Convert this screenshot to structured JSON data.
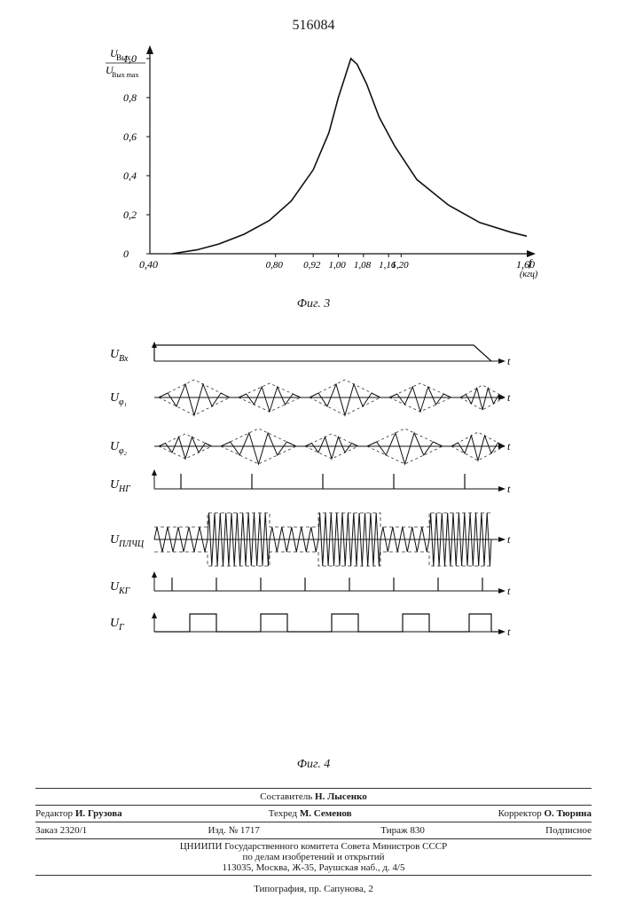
{
  "patent_number": "516084",
  "fig3": {
    "caption": "Фиг. 3",
    "ylabel_top": "U",
    "ylabel_top_sub": "Вых",
    "ylabel_bot": "U",
    "ylabel_bot_sub": "Вых max",
    "yticks": [
      "1,0",
      "0,8",
      "0,6",
      "0,4",
      "0,2",
      "0"
    ],
    "xticks_left": "0,40",
    "xticks_mid": [
      "0,80",
      "0,92",
      "1,00",
      "1,08",
      "1,16",
      "1,20"
    ],
    "xticks_right": "1,60",
    "xunit_top": "f",
    "xunit_bot": "(кгц)",
    "xlim": [
      0.4,
      1.6
    ],
    "ylim": [
      0,
      1.0
    ],
    "peak_x": 1.04,
    "curve": [
      [
        0.47,
        0.0
      ],
      [
        0.55,
        0.02
      ],
      [
        0.62,
        0.05
      ],
      [
        0.7,
        0.1
      ],
      [
        0.78,
        0.17
      ],
      [
        0.85,
        0.27
      ],
      [
        0.92,
        0.43
      ],
      [
        0.97,
        0.62
      ],
      [
        1.0,
        0.8
      ],
      [
        1.03,
        0.95
      ],
      [
        1.04,
        1.0
      ],
      [
        1.06,
        0.97
      ],
      [
        1.09,
        0.87
      ],
      [
        1.13,
        0.7
      ],
      [
        1.18,
        0.55
      ],
      [
        1.25,
        0.38
      ],
      [
        1.35,
        0.25
      ],
      [
        1.45,
        0.16
      ],
      [
        1.55,
        0.11
      ],
      [
        1.6,
        0.09
      ]
    ],
    "line_color": "#111111",
    "line_width": 1.6,
    "tick_fontsize": 12
  },
  "fig4": {
    "caption": "Фиг. 4",
    "signals": [
      {
        "label": "U",
        "sub": "Вх",
        "type": "ramp"
      },
      {
        "label": "U",
        "sub": "φ₁",
        "type": "beat"
      },
      {
        "label": "U",
        "sub": "φ₂",
        "type": "beat2"
      },
      {
        "label": "U",
        "sub": "НГ",
        "type": "impulse"
      },
      {
        "label": "U",
        "sub": "ПЛЧЦ",
        "type": "fm"
      },
      {
        "label": "U",
        "sub": "КГ",
        "type": "impulse2"
      },
      {
        "label": "U",
        "sub": "Г",
        "type": "pulse"
      }
    ],
    "t_label": "t",
    "line_color": "#111111",
    "dash_color": "#333333"
  },
  "credits": {
    "compiler_label": "Составитель",
    "compiler": "Н. Лысенко",
    "editor_label": "Редактор",
    "editor": "И. Грузова",
    "techred_label": "Техред",
    "techred": "М. Семенов",
    "corrector_label": "Корректор",
    "corrector": "О. Тюрина",
    "order_label": "Заказ",
    "order": "2320/1",
    "izd_label": "Изд. №",
    "izd": "1717",
    "tirage_label": "Тираж",
    "tirage": "830",
    "subscript": "Подписное",
    "org1": "ЦНИИПИ Государственного комитета Совета Министров СССР",
    "org2": "по делам изобретений и открытий",
    "addr": "113035, Москва, Ж-35, Раушская наб., д. 4/5",
    "typo": "Типография, пр. Сапунова, 2"
  },
  "colors": {
    "stroke": "#111111",
    "bg": "#ffffff"
  }
}
